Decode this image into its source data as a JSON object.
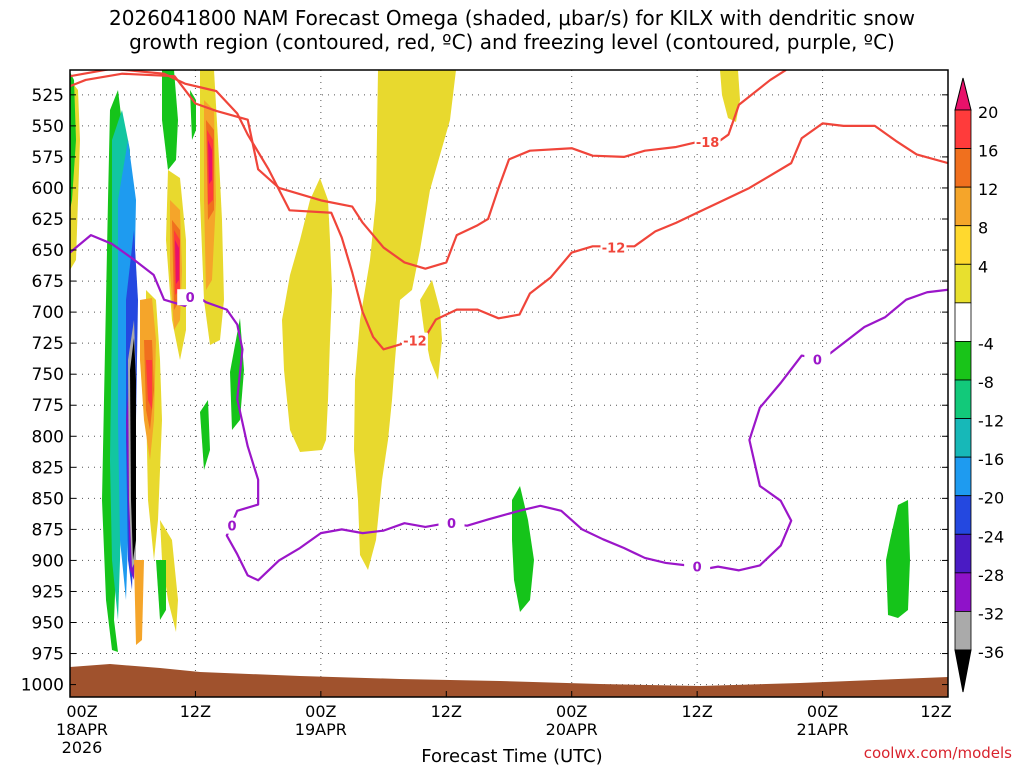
{
  "title": "2026041800 NAM Forecast Omega (shaded, μbar/s) for KILX with dendritic snow\ngrowth region (contoured, red, ºC) and freezing level (contoured, purple, ºC)",
  "xaxis_title": "Forecast Time (UTC)",
  "credit": "coolwx.com/models",
  "chart_data": {
    "type": "heatmap",
    "x_unit": "forecast hour",
    "y_unit": "mb",
    "xlim": [
      0,
      84
    ],
    "ylim": [
      1010,
      505
    ],
    "y_ticks": [
      525,
      550,
      575,
      600,
      625,
      650,
      675,
      700,
      725,
      750,
      775,
      800,
      825,
      850,
      875,
      900,
      925,
      950,
      975,
      1000
    ],
    "x_ticks": [
      {
        "hour": 0,
        "label": "00Z",
        "date": "18APR",
        "year": "2026"
      },
      {
        "hour": 12,
        "label": "12Z"
      },
      {
        "hour": 24,
        "label": "00Z",
        "date": "19APR"
      },
      {
        "hour": 36,
        "label": "12Z"
      },
      {
        "hour": 48,
        "label": "00Z",
        "date": "20APR"
      },
      {
        "hour": 60,
        "label": "12Z"
      },
      {
        "hour": 72,
        "label": "00Z",
        "date": "21APR"
      },
      {
        "hour": 84,
        "label": "12Z"
      }
    ],
    "colorbar": {
      "labels": [
        "20",
        "16",
        "12",
        "8",
        "4",
        "-4",
        "-8",
        "-12",
        "-16",
        "-20",
        "-24",
        "-28",
        "-32",
        "-36"
      ],
      "colors": [
        "#e8116a",
        "#ff3b3b",
        "#f0701e",
        "#f5a52a",
        "#ffd92e",
        "#e8e02e",
        "#ffffff",
        "#19c419",
        "#12c97a",
        "#17b8b8",
        "#1e9bf0",
        "#2448e0",
        "#4a1bc4",
        "#8f12c9",
        "#aaaaaa",
        "#000000"
      ]
    },
    "contours": [
      {
        "label": "-18",
        "color": "#f0453a",
        "points": [
          [
            0,
            518
          ],
          [
            1.5,
            513
          ],
          [
            5,
            508
          ],
          [
            10,
            510
          ],
          [
            12,
            532
          ],
          [
            14,
            538
          ],
          [
            17,
            545
          ],
          [
            18,
            585
          ],
          [
            20,
            600
          ],
          [
            24,
            610
          ],
          [
            27,
            615
          ],
          [
            28,
            628
          ],
          [
            30,
            648
          ],
          [
            32,
            660
          ],
          [
            34,
            665
          ],
          [
            36,
            660
          ],
          [
            37,
            638
          ],
          [
            39,
            630
          ],
          [
            40,
            625
          ],
          [
            41,
            600
          ],
          [
            42,
            577
          ],
          [
            44,
            570
          ],
          [
            48,
            568
          ],
          [
            50,
            574
          ],
          [
            53,
            575
          ],
          [
            55,
            570
          ],
          [
            58,
            567
          ],
          [
            60,
            563
          ],
          [
            62,
            563
          ],
          [
            63,
            557
          ],
          [
            64,
            533
          ],
          [
            67,
            513
          ],
          [
            68.5,
            505
          ]
        ]
      },
      {
        "label": "-12",
        "color": "#f0453a",
        "points": [
          [
            0,
            510
          ],
          [
            4,
            504
          ],
          [
            9,
            508
          ],
          [
            11,
            516
          ],
          [
            13,
            520
          ],
          [
            14,
            522
          ],
          [
            16,
            540
          ],
          [
            17,
            557
          ],
          [
            19,
            585
          ],
          [
            21,
            618
          ],
          [
            25,
            620
          ],
          [
            26,
            640
          ],
          [
            27,
            668
          ],
          [
            28,
            700
          ],
          [
            29,
            720
          ],
          [
            30,
            730
          ],
          [
            32,
            725
          ],
          [
            33,
            722
          ],
          [
            34,
            720
          ],
          [
            35,
            706
          ],
          [
            37,
            698
          ],
          [
            39,
            698
          ],
          [
            41,
            705
          ],
          [
            43,
            702
          ],
          [
            44,
            685
          ],
          [
            46,
            672
          ],
          [
            48,
            652
          ],
          [
            50,
            647
          ],
          [
            54,
            647
          ],
          [
            56,
            635
          ],
          [
            58,
            628
          ],
          [
            60,
            620
          ],
          [
            62,
            612
          ],
          [
            65,
            600
          ],
          [
            67,
            590
          ],
          [
            69,
            580
          ],
          [
            70,
            560
          ],
          [
            72,
            548
          ],
          [
            74,
            550
          ],
          [
            77,
            550
          ],
          [
            79,
            562
          ],
          [
            81,
            573
          ],
          [
            84,
            580
          ]
        ]
      },
      {
        "label": "0",
        "color": "#9b16c9",
        "points": [
          [
            0,
            652
          ],
          [
            2,
            638
          ],
          [
            4,
            645
          ],
          [
            6,
            657
          ],
          [
            8,
            670
          ],
          [
            9,
            690
          ],
          [
            11,
            695
          ],
          [
            12,
            686
          ],
          [
            13,
            692
          ],
          [
            15,
            698
          ],
          [
            16,
            710
          ],
          [
            16.5,
            730
          ],
          [
            16,
            770
          ],
          [
            17,
            808
          ],
          [
            18,
            835
          ],
          [
            18,
            855
          ],
          [
            16,
            860
          ],
          [
            15,
            880
          ],
          [
            16,
            895
          ],
          [
            17,
            912
          ],
          [
            18,
            916
          ],
          [
            20,
            900
          ],
          [
            22,
            890
          ],
          [
            24,
            878
          ],
          [
            26,
            875
          ],
          [
            28,
            878
          ],
          [
            30,
            876
          ],
          [
            32,
            870
          ],
          [
            34,
            873
          ],
          [
            36,
            870
          ],
          [
            38,
            872
          ],
          [
            40,
            867
          ],
          [
            43,
            860
          ],
          [
            45,
            856
          ],
          [
            47,
            860
          ],
          [
            49,
            875
          ],
          [
            51,
            883
          ],
          [
            53,
            890
          ],
          [
            55,
            898
          ],
          [
            57,
            902
          ],
          [
            59,
            904
          ],
          [
            60,
            908
          ],
          [
            62,
            905
          ],
          [
            64,
            908
          ],
          [
            66,
            904
          ],
          [
            68,
            888
          ],
          [
            69,
            868
          ],
          [
            68,
            852
          ],
          [
            66,
            840
          ],
          [
            65,
            803
          ],
          [
            66,
            777
          ],
          [
            68,
            757
          ],
          [
            70,
            735
          ],
          [
            72,
            738
          ],
          [
            74,
            725
          ],
          [
            76,
            712
          ],
          [
            78,
            704
          ],
          [
            80,
            690
          ],
          [
            82,
            684
          ],
          [
            84,
            682
          ]
        ]
      }
    ]
  }
}
